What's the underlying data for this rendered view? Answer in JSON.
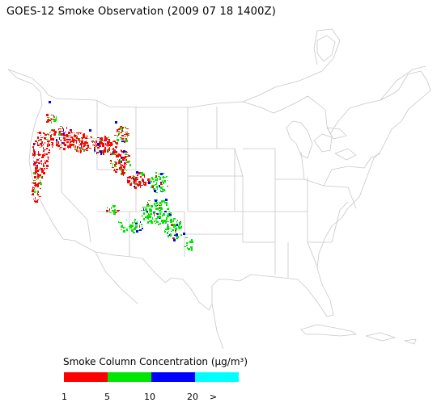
{
  "title": "GOES-12 Smoke Observation (2009 07 18  1400Z)",
  "legend": {
    "title": "Smoke Column Concentration (μg/m³)",
    "bins": [
      {
        "color": "#ff0000"
      },
      {
        "color": "#00e600"
      },
      {
        "color": "#0000ff"
      },
      {
        "color": "#00ffff"
      }
    ],
    "ticks": [
      "1",
      "5",
      "10",
      "20",
      ">"
    ]
  },
  "colors": {
    "boundary": "#c8c8c8",
    "background": "#ffffff"
  }
}
